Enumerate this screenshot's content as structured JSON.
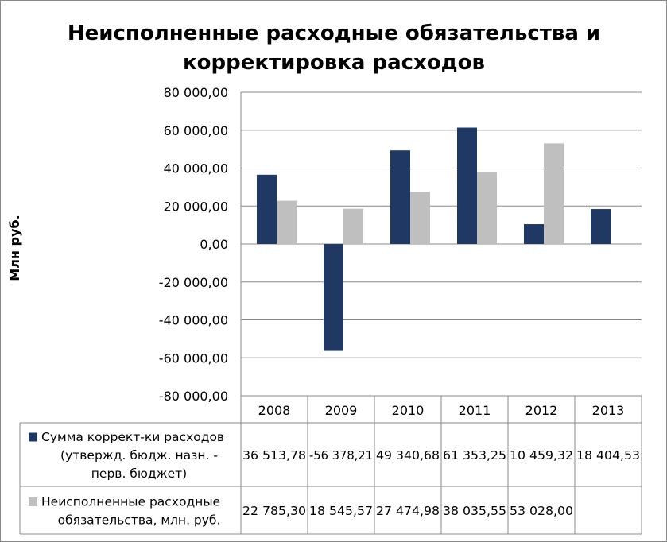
{
  "chart_data": {
    "type": "bar",
    "title_lines": [
      "Неисполненные расходные обязательства и",
      "корректировка расходов"
    ],
    "ylabel": "Млн руб.",
    "ylim": [
      -80000,
      80000
    ],
    "yticks": [
      80000,
      60000,
      40000,
      20000,
      0,
      -20000,
      -40000,
      -60000,
      -80000
    ],
    "ytick_labels": [
      "80 000,00",
      "60 000,00",
      "40 000,00",
      "20 000,00",
      "0,00",
      "-20 000,00",
      "-40 000,00",
      "-60 000,00",
      "-80 000,00"
    ],
    "grid": true,
    "legend": "data-table",
    "categories": [
      "2008",
      "2009",
      "2010",
      "2011",
      "2012",
      "2013"
    ],
    "series": [
      {
        "name_lines": [
          "Сумма коррект-ки расходов",
          "(утвержд. бюдж. назн. -",
          "перв. бюджет)"
        ],
        "color": "#1f3864",
        "values": [
          36513.78,
          -56378.21,
          49340.68,
          61353.25,
          10459.32,
          18404.53
        ],
        "labels": [
          "36 513,78",
          "-56 378,21",
          "49 340,68",
          "61 353,25",
          "10 459,32",
          "18 404,53"
        ]
      },
      {
        "name_lines": [
          "Неисполненные расходные",
          "обязательства, млн. руб."
        ],
        "color": "#bfbfbf",
        "values": [
          22785.3,
          18545.57,
          27474.98,
          38035.55,
          53028.0,
          null
        ],
        "labels": [
          "22 785,30",
          "18 545,57",
          "27 474,98",
          "38 035,55",
          "53 028,00",
          ""
        ]
      }
    ]
  }
}
